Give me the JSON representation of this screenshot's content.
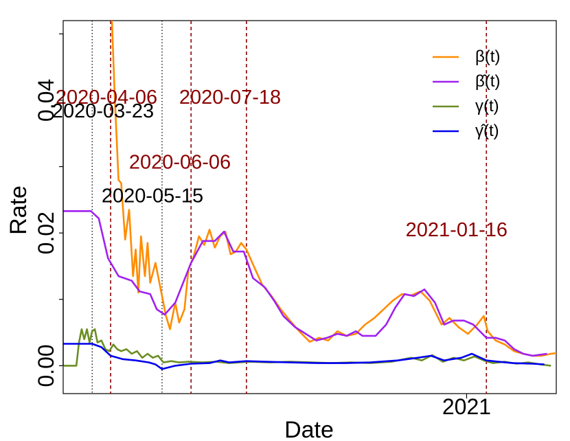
{
  "chart_data": {
    "type": "line",
    "xlabel": "Date",
    "ylabel": "Rate",
    "x_range": [
      "2020-03-01",
      "2021-03-10"
    ],
    "ylim": [
      -0.0042,
      0.052
    ],
    "yticks": [
      {
        "value": 0.0,
        "label": "0.00"
      },
      {
        "value": 0.02,
        "label": "0.02"
      },
      {
        "value": 0.04,
        "label": "0.04"
      }
    ],
    "xticks": [
      {
        "date": "2021-01-01",
        "label": "2021"
      }
    ],
    "grid": false,
    "legend_position": "top-right",
    "series": [
      {
        "name": "β(t)",
        "color": "#ff8c00",
        "points": [
          [
            "2020-04-07",
            0.052
          ],
          [
            "2020-04-09",
            0.041
          ],
          [
            "2020-04-12",
            0.028
          ],
          [
            "2020-04-14",
            0.0275
          ],
          [
            "2020-04-17",
            0.019
          ],
          [
            "2020-04-20",
            0.0235
          ],
          [
            "2020-04-23",
            0.0135
          ],
          [
            "2020-04-25",
            0.0175
          ],
          [
            "2020-04-27",
            0.011
          ],
          [
            "2020-04-29",
            0.0195
          ],
          [
            "2020-05-02",
            0.0135
          ],
          [
            "2020-05-04",
            0.0185
          ],
          [
            "2020-05-06",
            0.0125
          ],
          [
            "2020-05-10",
            0.0155
          ],
          [
            "2020-05-13",
            0.0125
          ],
          [
            "2020-05-18",
            0.0075
          ],
          [
            "2020-05-21",
            0.0055
          ],
          [
            "2020-05-25",
            0.0095
          ],
          [
            "2020-05-28",
            0.0065
          ],
          [
            "2020-06-01",
            0.0085
          ],
          [
            "2020-06-04",
            0.0145
          ],
          [
            "2020-06-08",
            0.0165
          ],
          [
            "2020-06-12",
            0.0195
          ],
          [
            "2020-06-16",
            0.0182
          ],
          [
            "2020-06-20",
            0.0205
          ],
          [
            "2020-06-24",
            0.0178
          ],
          [
            "2020-06-28",
            0.0195
          ],
          [
            "2020-07-02",
            0.0202
          ],
          [
            "2020-07-06",
            0.0168
          ],
          [
            "2020-07-10",
            0.0172
          ],
          [
            "2020-07-14",
            0.0185
          ],
          [
            "2020-07-18",
            0.0175
          ],
          [
            "2020-07-24",
            0.0148
          ],
          [
            "2020-07-30",
            0.0122
          ],
          [
            "2020-08-06",
            0.0105
          ],
          [
            "2020-08-13",
            0.0085
          ],
          [
            "2020-08-20",
            0.0068
          ],
          [
            "2020-08-27",
            0.0052
          ],
          [
            "2020-09-04",
            0.0036
          ],
          [
            "2020-09-11",
            0.0042
          ],
          [
            "2020-09-18",
            0.0038
          ],
          [
            "2020-09-25",
            0.0052
          ],
          [
            "2020-10-02",
            0.0045
          ],
          [
            "2020-10-09",
            0.0048
          ],
          [
            "2020-10-16",
            0.0062
          ],
          [
            "2020-10-23",
            0.0072
          ],
          [
            "2020-10-30",
            0.0085
          ],
          [
            "2020-11-06",
            0.0098
          ],
          [
            "2020-11-13",
            0.0108
          ],
          [
            "2020-11-20",
            0.0106
          ],
          [
            "2020-11-27",
            0.0112
          ],
          [
            "2020-12-04",
            0.0098
          ],
          [
            "2020-12-08",
            0.0082
          ],
          [
            "2020-12-13",
            0.0062
          ],
          [
            "2020-12-19",
            0.0072
          ],
          [
            "2020-12-26",
            0.0058
          ],
          [
            "2021-01-02",
            0.0048
          ],
          [
            "2021-01-09",
            0.0062
          ],
          [
            "2021-01-14",
            0.0075
          ],
          [
            "2021-01-17",
            0.0052
          ],
          [
            "2021-01-23",
            0.0038
          ],
          [
            "2021-01-30",
            0.0032
          ],
          [
            "2021-02-06",
            0.0022
          ],
          [
            "2021-02-13",
            0.0018
          ],
          [
            "2021-02-20",
            0.0015
          ],
          [
            "2021-02-27",
            0.0015
          ],
          [
            "2021-03-06",
            0.0018
          ],
          [
            "2021-03-10",
            0.0019
          ]
        ]
      },
      {
        "name": "β̂(t)",
        "color": "#a020f0",
        "points": [
          [
            "2020-03-01",
            0.0233
          ],
          [
            "2020-03-22",
            0.0233
          ],
          [
            "2020-03-28",
            0.0222
          ],
          [
            "2020-04-04",
            0.0162
          ],
          [
            "2020-04-12",
            0.0135
          ],
          [
            "2020-04-22",
            0.0128
          ],
          [
            "2020-04-28",
            0.0112
          ],
          [
            "2020-05-06",
            0.0108
          ],
          [
            "2020-05-11",
            0.0085
          ],
          [
            "2020-05-17",
            0.0077
          ],
          [
            "2020-05-25",
            0.0095
          ],
          [
            "2020-06-06",
            0.0155
          ],
          [
            "2020-06-15",
            0.0188
          ],
          [
            "2020-06-24",
            0.0188
          ],
          [
            "2020-07-01",
            0.0202
          ],
          [
            "2020-07-08",
            0.0172
          ],
          [
            "2020-07-16",
            0.0172
          ],
          [
            "2020-07-23",
            0.0132
          ],
          [
            "2020-08-01",
            0.0118
          ],
          [
            "2020-08-08",
            0.0098
          ],
          [
            "2020-08-15",
            0.0075
          ],
          [
            "2020-08-24",
            0.0058
          ],
          [
            "2020-09-01",
            0.0048
          ],
          [
            "2020-09-09",
            0.0038
          ],
          [
            "2020-09-17",
            0.0042
          ],
          [
            "2020-09-25",
            0.0048
          ],
          [
            "2020-10-02",
            0.0045
          ],
          [
            "2020-10-09",
            0.0052
          ],
          [
            "2020-10-14",
            0.0045
          ],
          [
            "2020-10-24",
            0.0045
          ],
          [
            "2020-11-01",
            0.0062
          ],
          [
            "2020-11-08",
            0.0088
          ],
          [
            "2020-11-15",
            0.0108
          ],
          [
            "2020-11-22",
            0.0105
          ],
          [
            "2020-11-30",
            0.0115
          ],
          [
            "2020-12-08",
            0.0095
          ],
          [
            "2020-12-15",
            0.0062
          ],
          [
            "2020-12-22",
            0.0068
          ],
          [
            "2020-12-30",
            0.0068
          ],
          [
            "2021-01-06",
            0.0062
          ],
          [
            "2021-01-16",
            0.0042
          ],
          [
            "2021-01-23",
            0.0042
          ],
          [
            "2021-01-30",
            0.0038
          ],
          [
            "2021-02-06",
            0.0025
          ],
          [
            "2021-02-13",
            0.0018
          ],
          [
            "2021-02-20",
            0.0015
          ],
          [
            "2021-03-03",
            0.0018
          ]
        ]
      },
      {
        "name": "γ(t)",
        "color": "#6b8e23",
        "points": [
          [
            "2020-03-01",
            0.0
          ],
          [
            "2020-03-11",
            0.0
          ],
          [
            "2020-03-13",
            0.0035
          ],
          [
            "2020-03-15",
            0.0055
          ],
          [
            "2020-03-17",
            0.004
          ],
          [
            "2020-03-19",
            0.0055
          ],
          [
            "2020-03-21",
            0.0035
          ],
          [
            "2020-03-23",
            0.0052
          ],
          [
            "2020-03-25",
            0.0055
          ],
          [
            "2020-03-27",
            0.0035
          ],
          [
            "2020-03-30",
            0.0038
          ],
          [
            "2020-04-02",
            0.0025
          ],
          [
            "2020-04-05",
            0.0022
          ],
          [
            "2020-04-08",
            0.0032
          ],
          [
            "2020-04-11",
            0.0025
          ],
          [
            "2020-04-14",
            0.0022
          ],
          [
            "2020-04-18",
            0.0025
          ],
          [
            "2020-04-22",
            0.0018
          ],
          [
            "2020-04-26",
            0.0022
          ],
          [
            "2020-04-30",
            0.0012
          ],
          [
            "2020-05-04",
            0.0018
          ],
          [
            "2020-05-08",
            0.0012
          ],
          [
            "2020-05-12",
            0.0015
          ],
          [
            "2020-05-16",
            0.0005
          ],
          [
            "2020-05-22",
            0.0007
          ],
          [
            "2020-05-28",
            0.0005
          ],
          [
            "2020-06-04",
            0.0006
          ],
          [
            "2020-06-15",
            0.0005
          ],
          [
            "2020-06-25",
            0.0006
          ],
          [
            "2020-07-05",
            0.0004
          ],
          [
            "2020-07-20",
            0.0006
          ],
          [
            "2020-08-05",
            0.0005
          ],
          [
            "2020-08-20",
            0.0006
          ],
          [
            "2020-09-05",
            0.0005
          ],
          [
            "2020-09-20",
            0.0004
          ],
          [
            "2020-10-05",
            0.0005
          ],
          [
            "2020-10-20",
            0.0004
          ],
          [
            "2020-11-05",
            0.0006
          ],
          [
            "2020-11-20",
            0.0012
          ],
          [
            "2020-11-28",
            0.0008
          ],
          [
            "2020-12-06",
            0.0016
          ],
          [
            "2020-12-14",
            0.0006
          ],
          [
            "2020-12-22",
            0.0012
          ],
          [
            "2020-12-30",
            0.0008
          ],
          [
            "2021-01-07",
            0.0014
          ],
          [
            "2021-01-14",
            0.0008
          ],
          [
            "2021-01-21",
            0.0004
          ],
          [
            "2021-01-30",
            0.0006
          ],
          [
            "2021-02-08",
            0.0003
          ],
          [
            "2021-02-17",
            0.0005
          ],
          [
            "2021-02-26",
            0.0002
          ],
          [
            "2021-03-06",
            0.0
          ]
        ]
      },
      {
        "name": "γ̂(t)",
        "color": "#0000ee",
        "points": [
          [
            "2020-03-01",
            0.0033
          ],
          [
            "2020-03-23",
            0.0033
          ],
          [
            "2020-03-30",
            0.0028
          ],
          [
            "2020-04-06",
            0.0015
          ],
          [
            "2020-04-15",
            0.001
          ],
          [
            "2020-04-25",
            0.0008
          ],
          [
            "2020-05-05",
            0.0005
          ],
          [
            "2020-05-10",
            0.0002
          ],
          [
            "2020-05-15",
            -0.0005
          ],
          [
            "2020-05-25",
            0.0
          ],
          [
            "2020-06-06",
            0.0003
          ],
          [
            "2020-06-20",
            0.0004
          ],
          [
            "2020-06-28",
            0.0008
          ],
          [
            "2020-07-05",
            0.0005
          ],
          [
            "2020-07-18",
            0.0007
          ],
          [
            "2020-08-01",
            0.0006
          ],
          [
            "2020-08-20",
            0.0005
          ],
          [
            "2020-09-10",
            0.0004
          ],
          [
            "2020-10-01",
            0.0004
          ],
          [
            "2020-10-20",
            0.0005
          ],
          [
            "2020-11-10",
            0.0008
          ],
          [
            "2020-11-25",
            0.0012
          ],
          [
            "2020-12-05",
            0.0015
          ],
          [
            "2020-12-15",
            0.0008
          ],
          [
            "2020-12-28",
            0.0012
          ],
          [
            "2021-01-05",
            0.0018
          ],
          [
            "2021-01-16",
            0.0008
          ],
          [
            "2021-01-25",
            0.0006
          ],
          [
            "2021-02-05",
            0.0004
          ],
          [
            "2021-02-20",
            0.0003
          ],
          [
            "2021-03-01",
            0.0002
          ]
        ]
      }
    ],
    "annotations": [
      {
        "date": "2020-03-23",
        "label": "2020-03-23",
        "color": "#000000",
        "line": "dotted",
        "label_value": 0.0374
      },
      {
        "date": "2020-04-06",
        "label": "2020-04-06",
        "color": "#8b0000",
        "line": "dashed",
        "label_value": 0.0395
      },
      {
        "date": "2020-05-15",
        "label": "2020-05-15",
        "color": "#000000",
        "line": "dotted",
        "label_value": 0.0246
      },
      {
        "date": "2020-06-06",
        "label": "2020-06-06",
        "color": "#8b0000",
        "line": "dashed",
        "label_value": 0.0297
      },
      {
        "date": "2020-07-18",
        "label": "2020-07-18",
        "color": "#8b0000",
        "line": "dashed",
        "label_value": 0.0395
      },
      {
        "date": "2021-01-16",
        "label": "2021-01-16",
        "color": "#8b0000",
        "line": "dashed",
        "label_value": 0.0195
      }
    ]
  }
}
